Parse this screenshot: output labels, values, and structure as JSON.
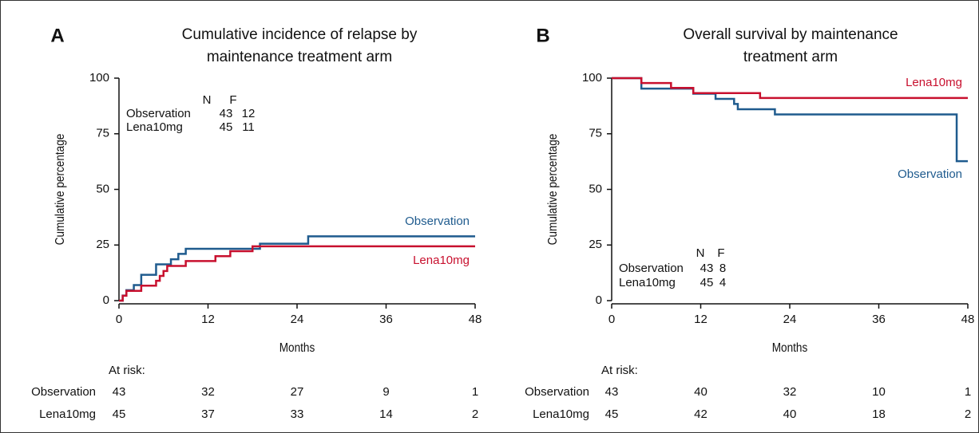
{
  "chart_data": [
    {
      "type": "line",
      "step": true,
      "label": "A",
      "title": [
        "Cumulative incidence of relapse by",
        "maintenance treatment arm"
      ],
      "x_label": "Months",
      "y_label": "Cumulative percentage",
      "xlim": [
        0,
        48
      ],
      "xticks": [
        0,
        12,
        24,
        36,
        48
      ],
      "ylim": [
        0,
        100
      ],
      "yticks": [
        0,
        25,
        50,
        75,
        100
      ],
      "series": [
        {
          "name": "Observation",
          "color": "#1f5b8e",
          "x": [
            0,
            0.5,
            1,
            2,
            3,
            5,
            7,
            8,
            9,
            19,
            25.5,
            48
          ],
          "values": [
            0,
            2.3,
            4.7,
            7,
            11.6,
            16.3,
            18.6,
            21,
            23.3,
            25.6,
            28.9,
            28.9
          ]
        },
        {
          "name": "Lena10mg",
          "color": "#c8102e",
          "x": [
            0,
            0.5,
            1,
            3,
            5,
            5.5,
            6,
            6.5,
            9,
            13,
            15,
            18,
            48
          ],
          "values": [
            0,
            2.2,
            4.4,
            6.7,
            8.9,
            11.1,
            13.3,
            15.6,
            17.8,
            20,
            22.2,
            24.4,
            24.4
          ]
        }
      ],
      "summary": {
        "headers": [
          "N",
          "F"
        ],
        "rows": [
          {
            "name": "Observation",
            "values": [
              43,
              12
            ]
          },
          {
            "name": "Lena10mg",
            "values": [
              45,
              11
            ]
          }
        ]
      },
      "at_risk": {
        "label": "At risk:",
        "rows": [
          {
            "name": "Observation",
            "values": [
              43,
              32,
              27,
              9,
              1
            ]
          },
          {
            "name": "Lena10mg",
            "values": [
              45,
              37,
              33,
              14,
              2
            ]
          }
        ]
      }
    },
    {
      "type": "line",
      "step": true,
      "label": "B",
      "title": [
        "Overall survival by maintenance",
        "treatment arm"
      ],
      "x_label": "Months",
      "y_label": "Cumulative percentage",
      "xlim": [
        0,
        48
      ],
      "xticks": [
        0,
        12,
        24,
        36,
        48
      ],
      "ylim": [
        0,
        100
      ],
      "yticks": [
        0,
        25,
        50,
        75,
        100
      ],
      "series": [
        {
          "name": "Observation",
          "color": "#1f5b8e",
          "x": [
            0,
            4,
            11,
            14,
            16.5,
            17,
            22,
            46.5,
            48
          ],
          "values": [
            100,
            95.3,
            93,
            90.7,
            88.4,
            86,
            83.7,
            62.7,
            62.7
          ]
        },
        {
          "name": "Lena10mg",
          "color": "#c8102e",
          "x": [
            0,
            4,
            8,
            11,
            20,
            48
          ],
          "values": [
            100,
            97.8,
            95.6,
            93.3,
            91.1,
            91.1
          ]
        }
      ],
      "summary": {
        "headers": [
          "N",
          "F"
        ],
        "rows": [
          {
            "name": "Observation",
            "values": [
              43,
              8
            ]
          },
          {
            "name": "Lena10mg",
            "values": [
              45,
              4
            ]
          }
        ]
      },
      "at_risk": {
        "label": "At risk:",
        "rows": [
          {
            "name": "Observation",
            "values": [
              43,
              40,
              32,
              10,
              1
            ]
          },
          {
            "name": "Lena10mg",
            "values": [
              45,
              42,
              40,
              18,
              2
            ]
          }
        ]
      }
    }
  ]
}
